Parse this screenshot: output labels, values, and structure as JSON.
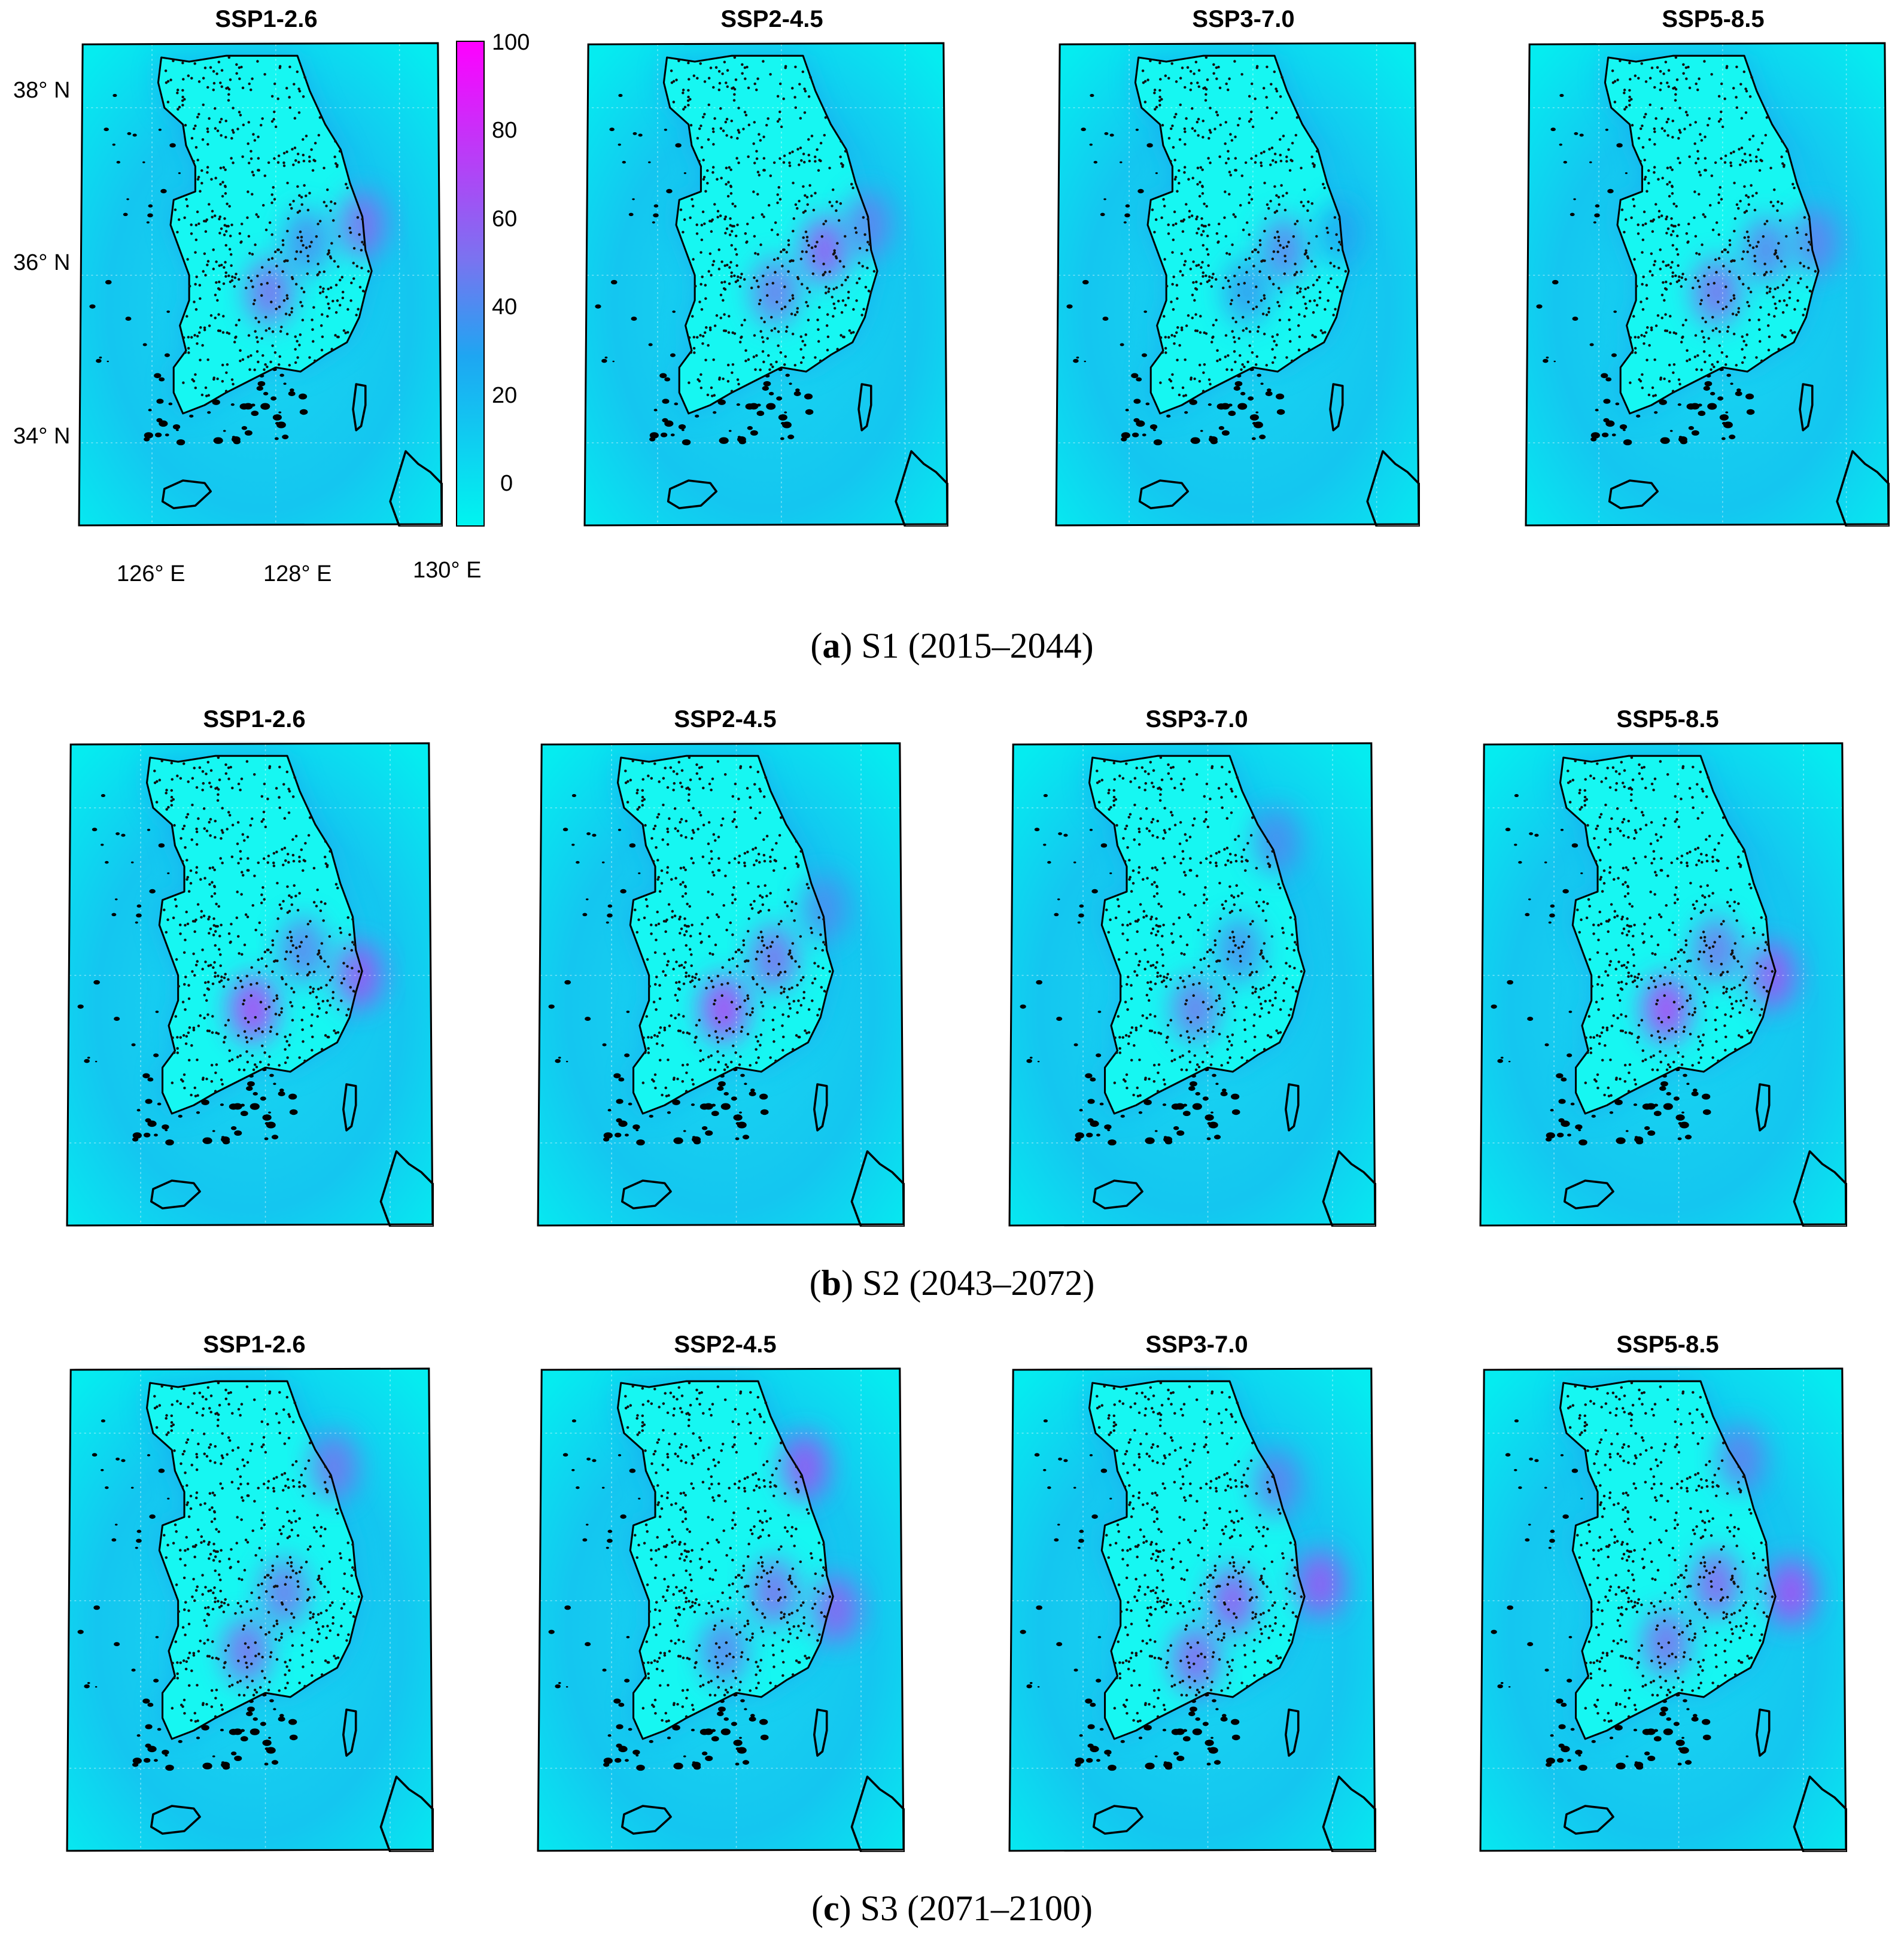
{
  "colors": {
    "low": "#00f5f0",
    "mid": "#1ea6f2",
    "high": "#ff00ff",
    "land": "#16f7f2",
    "stations": "#111111"
  },
  "colorbar": {
    "ticks": [
      "100",
      "80",
      "60",
      "40",
      "20",
      "0"
    ],
    "range": [
      -10,
      100
    ]
  },
  "axes": {
    "lat_labels": [
      "38° N",
      "36° N",
      "34° N"
    ],
    "lon_labels": [
      "126° E",
      "128° E",
      "130° E"
    ]
  },
  "rows": [
    {
      "caption_letter": "a",
      "caption_text": " S1 (2015–2044)",
      "panels": [
        {
          "title": "SSP1-2.6",
          "hotspots": [
            {
              "lon": 127.9,
              "lat": 35.8,
              "v": 55
            },
            {
              "lon": 128.5,
              "lat": 36.4,
              "v": 40
            },
            {
              "lon": 129.4,
              "lat": 36.6,
              "v": 55
            }
          ]
        },
        {
          "title": "SSP2-4.5",
          "hotspots": [
            {
              "lon": 128.7,
              "lat": 36.3,
              "v": 65
            },
            {
              "lon": 127.9,
              "lat": 35.8,
              "v": 50
            },
            {
              "lon": 129.4,
              "lat": 36.6,
              "v": 45
            }
          ]
        },
        {
          "title": "SSP3-7.0",
          "hotspots": [
            {
              "lon": 128.5,
              "lat": 36.3,
              "v": 45
            },
            {
              "lon": 127.9,
              "lat": 35.8,
              "v": 35
            },
            {
              "lon": 129.4,
              "lat": 36.5,
              "v": 30
            }
          ]
        },
        {
          "title": "SSP5-8.5",
          "hotspots": [
            {
              "lon": 127.9,
              "lat": 35.8,
              "v": 55
            },
            {
              "lon": 128.7,
              "lat": 36.3,
              "v": 45
            },
            {
              "lon": 129.5,
              "lat": 36.4,
              "v": 45
            }
          ]
        }
      ]
    },
    {
      "caption_letter": "b",
      "caption_text": " S2 (2043–2072)",
      "panels": [
        {
          "title": "SSP1-2.6",
          "hotspots": [
            {
              "lon": 127.8,
              "lat": 35.6,
              "v": 75
            },
            {
              "lon": 128.6,
              "lat": 36.3,
              "v": 45
            },
            {
              "lon": 129.5,
              "lat": 36.0,
              "v": 65
            }
          ]
        },
        {
          "title": "SSP2-4.5",
          "hotspots": [
            {
              "lon": 127.8,
              "lat": 35.6,
              "v": 75
            },
            {
              "lon": 128.6,
              "lat": 36.2,
              "v": 55
            },
            {
              "lon": 129.4,
              "lat": 36.8,
              "v": 40
            }
          ]
        },
        {
          "title": "SSP3-7.0",
          "hotspots": [
            {
              "lon": 127.8,
              "lat": 35.6,
              "v": 50
            },
            {
              "lon": 128.5,
              "lat": 36.3,
              "v": 40
            },
            {
              "lon": 129.1,
              "lat": 37.6,
              "v": 40
            }
          ]
        },
        {
          "title": "SSP5-8.5",
          "hotspots": [
            {
              "lon": 127.8,
              "lat": 35.6,
              "v": 75
            },
            {
              "lon": 128.6,
              "lat": 36.3,
              "v": 50
            },
            {
              "lon": 129.5,
              "lat": 36.0,
              "v": 65
            }
          ]
        }
      ]
    },
    {
      "caption_letter": "c",
      "caption_text": " S3 (2071–2100)",
      "panels": [
        {
          "title": "SSP1-2.6",
          "hotspots": [
            {
              "lon": 127.7,
              "lat": 35.4,
              "v": 55
            },
            {
              "lon": 128.3,
              "lat": 36.1,
              "v": 50
            },
            {
              "lon": 129.1,
              "lat": 37.6,
              "v": 50
            }
          ]
        },
        {
          "title": "SSP2-4.5",
          "hotspots": [
            {
              "lon": 129.1,
              "lat": 37.6,
              "v": 65
            },
            {
              "lon": 128.6,
              "lat": 36.1,
              "v": 55
            },
            {
              "lon": 129.6,
              "lat": 35.9,
              "v": 60
            },
            {
              "lon": 127.8,
              "lat": 35.4,
              "v": 45
            }
          ]
        },
        {
          "title": "SSP3-7.0",
          "hotspots": [
            {
              "lon": 128.4,
              "lat": 36.0,
              "v": 65
            },
            {
              "lon": 127.8,
              "lat": 35.3,
              "v": 60
            },
            {
              "lon": 129.8,
              "lat": 36.2,
              "v": 65
            },
            {
              "lon": 129.1,
              "lat": 37.4,
              "v": 45
            }
          ]
        },
        {
          "title": "SSP5-8.5",
          "hotspots": [
            {
              "lon": 128.6,
              "lat": 36.2,
              "v": 60
            },
            {
              "lon": 127.8,
              "lat": 35.5,
              "v": 55
            },
            {
              "lon": 129.8,
              "lat": 36.1,
              "v": 70
            },
            {
              "lon": 129.0,
              "lat": 37.7,
              "v": 45
            }
          ]
        }
      ]
    }
  ]
}
